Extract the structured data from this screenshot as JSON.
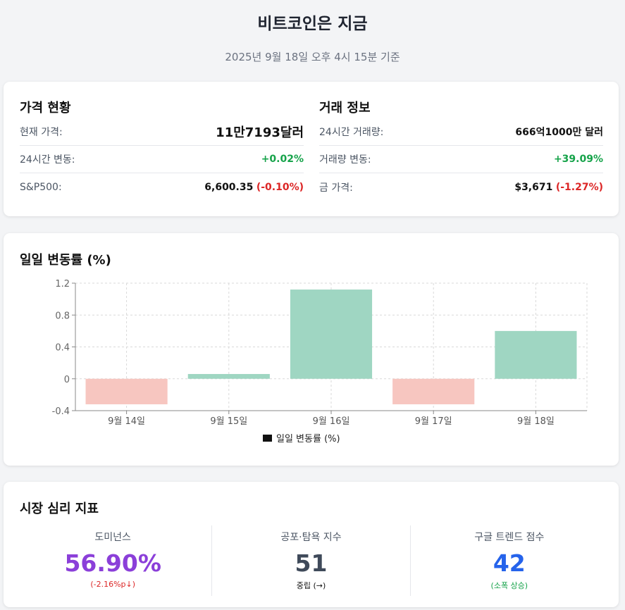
{
  "page": {
    "title": "비트코인은 지금",
    "subtitle": "2025년 9월 18일 오후 4시 15분 기준"
  },
  "price_card": {
    "heading": "가격 현황",
    "rows": [
      {
        "label": "현재 가격:",
        "value": "11만7193달러"
      },
      {
        "label": "24시간 변동:",
        "change": "+0.02%"
      },
      {
        "label": "S&P500:",
        "value": "6,600.35",
        "change": "(-0.10%)"
      }
    ]
  },
  "trade_card": {
    "heading": "거래 정보",
    "rows": [
      {
        "label": "24시간 거래량:",
        "value": "666억1000만 달러"
      },
      {
        "label": "거래량 변동:",
        "change": "+39.09%"
      },
      {
        "label": "금 가격:",
        "value": "$3,671",
        "change": "(-1.27%)"
      }
    ]
  },
  "chart_card": {
    "heading": "일일 변동률 (%)"
  },
  "chart_data": {
    "type": "bar",
    "categories": [
      "9월 14일",
      "9월 15일",
      "9월 16일",
      "9월 17일",
      "9월 18일"
    ],
    "series": [
      {
        "name": "일일 변동률 (%)",
        "values": [
          -0.32,
          0.06,
          1.12,
          -0.32,
          0.6
        ]
      }
    ],
    "yticks": [
      "1.2",
      "0.8",
      "0.4",
      "0",
      "-0.4"
    ],
    "ylim": [
      -0.4,
      1.2
    ],
    "grid": true,
    "legend": "bottom",
    "colors": {
      "positive": "#9fd6c2",
      "negative": "#f7c6c0",
      "legend_swatch": "#111111"
    }
  },
  "sentiment_card": {
    "heading": "시장 심리 지표",
    "items": [
      {
        "label": "도미넌스",
        "value": "56.90%",
        "sub": "(-2.16%p↓)"
      },
      {
        "label": "공포·탐욕 지수",
        "value": "51",
        "sub": "중립 (→)"
      },
      {
        "label": "구글 트렌드 점수",
        "value": "42",
        "sub": "(소폭 상승)"
      }
    ]
  }
}
